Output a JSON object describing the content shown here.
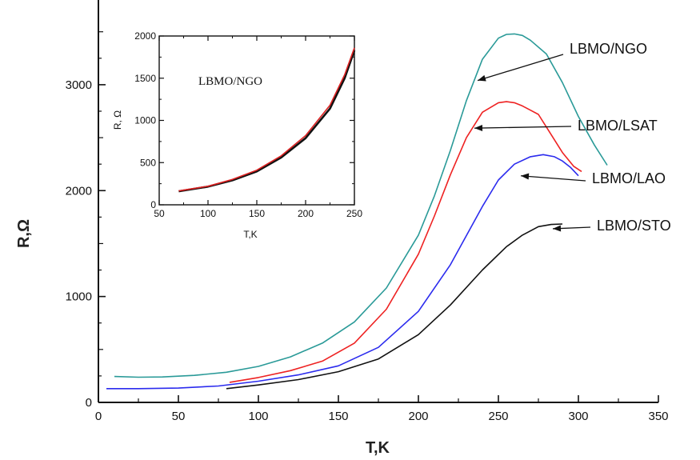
{
  "chart_data": [
    {
      "type": "line",
      "title": "",
      "xlabel": "T,K",
      "ylabel": "R,Ω",
      "xlim": [
        0,
        350
      ],
      "ylim": [
        0,
        3800
      ],
      "xticks": [
        0,
        50,
        100,
        150,
        200,
        250,
        300,
        350
      ],
      "yticks": [
        0,
        1000,
        2000,
        3000
      ],
      "grid": false,
      "legend": "annotations-with-arrows",
      "series": [
        {
          "name": "LBMO/NGO",
          "color": "#2a9a98",
          "x": [
            10,
            25,
            40,
            60,
            80,
            100,
            120,
            140,
            160,
            180,
            200,
            210,
            220,
            230,
            240,
            250,
            255,
            260,
            265,
            270,
            280,
            290,
            300,
            310,
            318
          ],
          "y": [
            245,
            238,
            240,
            255,
            285,
            340,
            430,
            560,
            760,
            1080,
            1580,
            1950,
            2380,
            2850,
            3240,
            3440,
            3475,
            3480,
            3465,
            3420,
            3290,
            3020,
            2700,
            2430,
            2240
          ]
        },
        {
          "name": "LBMO/LSAT",
          "color": "#ee2222",
          "x": [
            82,
            100,
            120,
            140,
            160,
            180,
            200,
            210,
            220,
            230,
            240,
            250,
            255,
            260,
            265,
            270,
            275,
            280,
            290,
            297,
            302
          ],
          "y": [
            190,
            235,
            300,
            390,
            560,
            880,
            1400,
            1760,
            2150,
            2500,
            2740,
            2830,
            2840,
            2830,
            2800,
            2760,
            2720,
            2600,
            2360,
            2230,
            2180
          ]
        },
        {
          "name": "LBMO/LAO",
          "color": "#2b2bee",
          "x": [
            5,
            25,
            50,
            75,
            100,
            125,
            150,
            175,
            200,
            220,
            240,
            250,
            260,
            270,
            278,
            285,
            290,
            295,
            300
          ],
          "y": [
            130,
            130,
            135,
            155,
            200,
            260,
            345,
            520,
            860,
            1300,
            1850,
            2100,
            2250,
            2320,
            2340,
            2320,
            2280,
            2220,
            2140
          ]
        },
        {
          "name": "LBMO/STO",
          "color": "#111111",
          "x": [
            80,
            100,
            125,
            150,
            175,
            200,
            220,
            240,
            255,
            265,
            275,
            283,
            290
          ],
          "y": [
            130,
            165,
            215,
            290,
            410,
            640,
            920,
            1250,
            1470,
            1580,
            1660,
            1680,
            1685
          ]
        }
      ],
      "annotations": [
        "LBMO/NGO",
        "LBMO/LSAT",
        "LBMO/LAO",
        "LBMO/STO"
      ]
    },
    {
      "type": "line",
      "title": "LBMO/NGO",
      "xlabel": "T,K",
      "ylabel": "R, Ω",
      "xlim": [
        50,
        250
      ],
      "ylim": [
        0,
        2000
      ],
      "xticks": [
        50,
        100,
        150,
        200,
        250
      ],
      "yticks": [
        0,
        500,
        1000,
        1500,
        2000
      ],
      "grid": false,
      "series": [
        {
          "color": "#111111",
          "x": [
            70,
            100,
            125,
            150,
            175,
            200,
            225,
            240,
            250
          ],
          "y": [
            160,
            215,
            290,
            395,
            560,
            790,
            1140,
            1500,
            1830
          ]
        },
        {
          "color": "#dd2222",
          "x": [
            70,
            100,
            125,
            150,
            175,
            200,
            225,
            240,
            250
          ],
          "y": [
            165,
            220,
            300,
            410,
            580,
            820,
            1180,
            1540,
            1860
          ]
        }
      ]
    }
  ]
}
